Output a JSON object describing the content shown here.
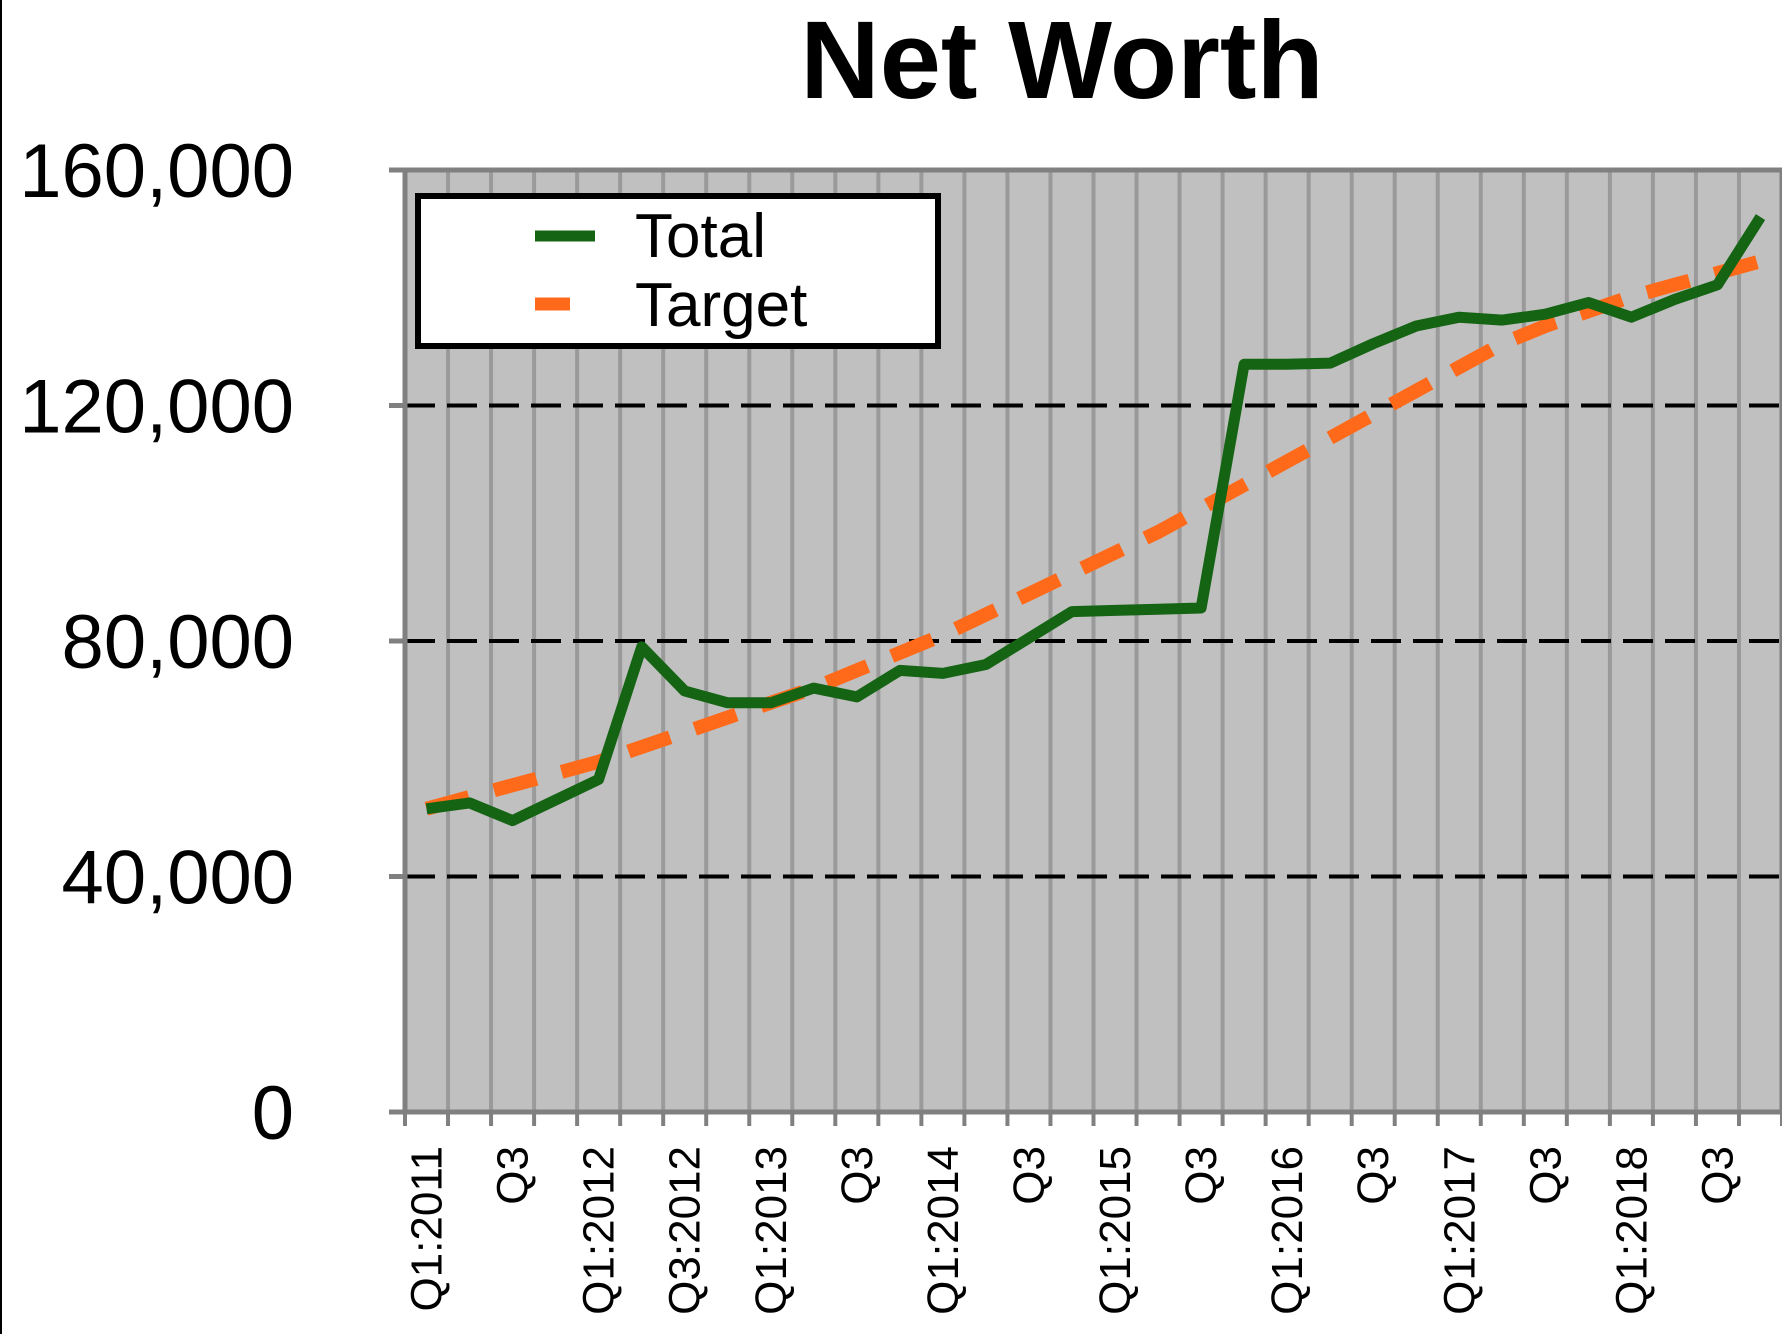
{
  "chart_data": {
    "type": "line",
    "title": "Net Worth",
    "xlabel": "",
    "ylabel": "",
    "ylim": [
      0,
      160000
    ],
    "yticks": [
      0,
      40000,
      80000,
      120000,
      160000
    ],
    "ytick_labels": [
      "0",
      "40,000",
      "80,000",
      "120,000",
      "160,000"
    ],
    "categories": [
      "Q1:2011",
      "",
      "Q3",
      "",
      "Q1:2012",
      "",
      "Q3:2012",
      "",
      "Q1:2013",
      "",
      "Q3",
      "",
      "Q1:2014",
      "",
      "Q3",
      "",
      "Q1:2015",
      "",
      "Q3",
      "",
      "Q1:2016",
      "",
      "Q3",
      "",
      "Q1:2017",
      "",
      "Q3",
      "",
      "Q1:2018",
      "",
      "Q3",
      ""
    ],
    "grid": {
      "horizontal": true,
      "horizontal_style": "dashed",
      "vertical": true
    },
    "legend_position": "top-left",
    "series": [
      {
        "name": "Total",
        "color": "#146414",
        "style": "solid",
        "values": [
          51500,
          52500,
          49500,
          53000,
          56500,
          79000,
          71500,
          69500,
          69500,
          72000,
          70500,
          75000,
          74500,
          76000,
          80500,
          85000,
          85200,
          85400,
          85600,
          127000,
          127000,
          127200,
          130500,
          133500,
          135000,
          134500,
          135500,
          137500,
          135000,
          138000,
          140500,
          152000
        ]
      },
      {
        "name": "Target",
        "color": "#ff6a1a",
        "style": "dashed",
        "values": [
          51500,
          53500,
          55500,
          57500,
          59500,
          62000,
          64500,
          67000,
          69500,
          72000,
          75000,
          78000,
          81000,
          84500,
          88000,
          91500,
          95000,
          98500,
          102500,
          106500,
          110500,
          114500,
          118500,
          122500,
          126500,
          130500,
          133500,
          136000,
          138500,
          140500,
          142500,
          144500
        ]
      }
    ]
  }
}
